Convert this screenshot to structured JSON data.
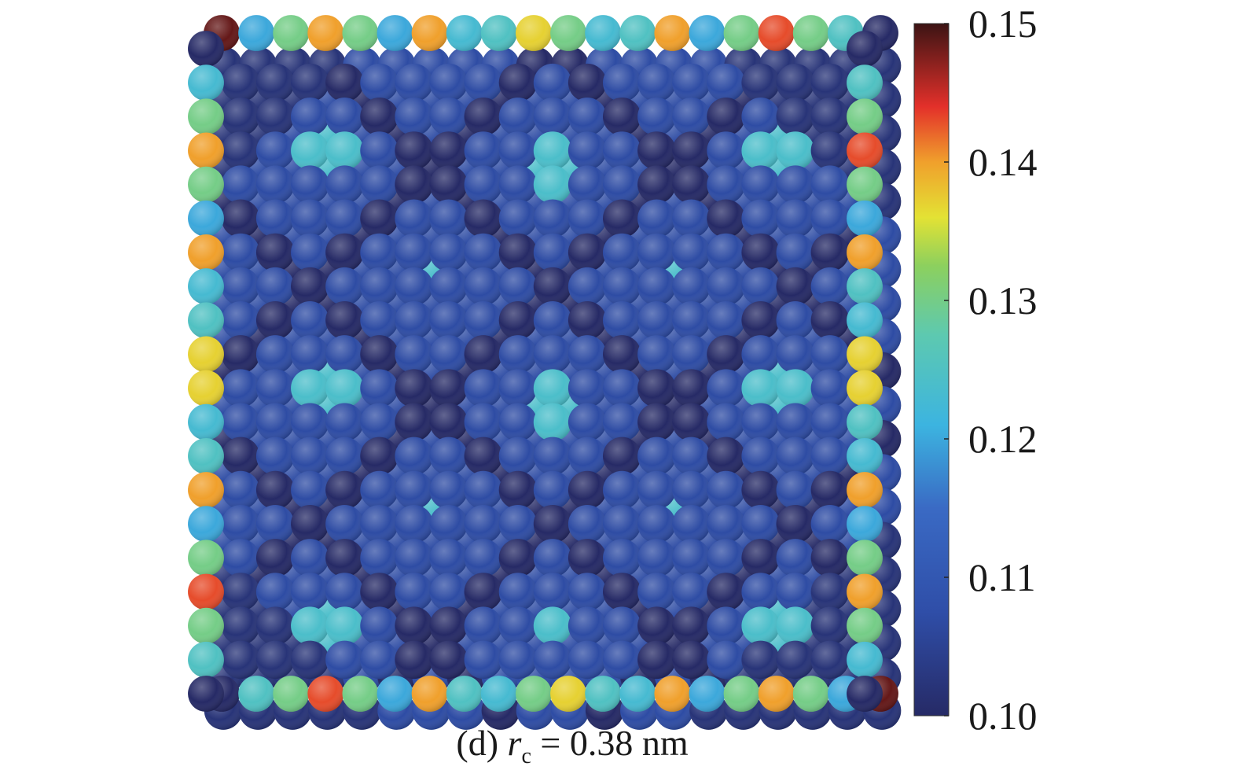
{
  "chart_data": {
    "type": "heatmap",
    "title": "",
    "caption": {
      "prefix": "(d) ",
      "symbol": "r",
      "subscript": "c",
      "suffix": " = 0.38 nm"
    },
    "colorbar": {
      "min": 0.1,
      "max": 0.15,
      "ticks": [
        "0.15",
        "0.14",
        "0.13",
        "0.12",
        "0.11",
        "0.10"
      ],
      "tick_values": [
        0.15,
        0.14,
        0.13,
        0.12,
        0.11,
        0.1
      ],
      "colormap": "jet"
    },
    "grid": {
      "description": "square array of atoms colored by value; edge atoms high, interior low",
      "edge_pattern_top": [
        0.15,
        0.12,
        0.13,
        0.14,
        0.13,
        0.12,
        0.14,
        0.123,
        0.125,
        0.137,
        0.13,
        0.123,
        0.125,
        0.14,
        0.12,
        0.13,
        0.143,
        0.13,
        0.125,
        0.1
      ],
      "edge_pattern_side": [
        0.1,
        0.123,
        0.13,
        0.14,
        0.13,
        0.12,
        0.14,
        0.123,
        0.125,
        0.137,
        0.137,
        0.123,
        0.125,
        0.14,
        0.12,
        0.13,
        0.143,
        0.13,
        0.125,
        0.1
      ],
      "interior_base": 0.107,
      "interior_dark": 0.1,
      "hotspot_value": 0.124,
      "hotspots": [
        [
          3.5,
          3.0
        ],
        [
          10.0,
          3.5
        ],
        [
          16.5,
          3.0
        ],
        [
          6.5,
          6.5
        ],
        [
          13.5,
          6.5
        ],
        [
          3.5,
          10.0
        ],
        [
          10.0,
          10.5
        ],
        [
          16.5,
          10.0
        ],
        [
          6.5,
          13.5
        ],
        [
          13.5,
          13.5
        ],
        [
          3.5,
          17.0
        ],
        [
          10.0,
          17.0
        ],
        [
          16.5,
          17.0
        ]
      ]
    },
    "colors": {
      "c010": "#2b2f6e",
      "c011": "#3258b8",
      "c012": "#5cc7a8",
      "c013": "#c8de3a",
      "c014": "#e8502a",
      "c015": "#6b1a1a"
    }
  }
}
